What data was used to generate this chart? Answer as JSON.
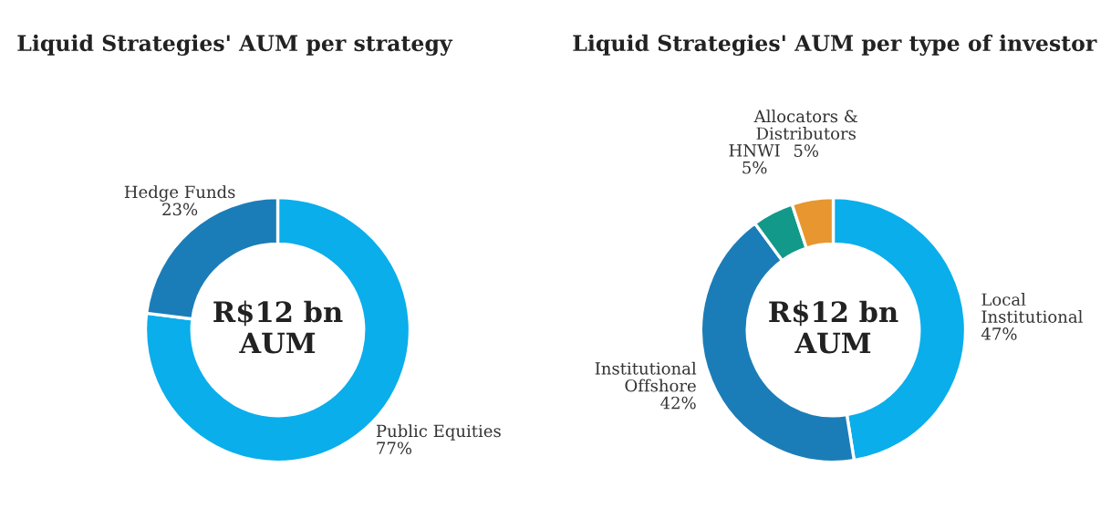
{
  "chart_data": [
    {
      "type": "donut",
      "title": "Liquid Strategies' AUM per strategy",
      "categories": [
        "Public Equities",
        "Hedge Funds"
      ],
      "values": [
        77,
        23
      ],
      "colors": [
        "#0aaeeb",
        "#1b7db8"
      ],
      "value_labels": [
        "77%",
        "23%"
      ],
      "annotations": [
        "R$12 bn\nAUM"
      ]
    },
    {
      "type": "donut",
      "title": "Liquid Strategies' AUM per type of investor",
      "categories": [
        "Local\nInstitutional",
        "Institutional\nOffshore",
        "HNWI",
        "Allocators &\nDistributors"
      ],
      "values": [
        47,
        42,
        5,
        5
      ],
      "colors": [
        "#0aaeeb",
        "#1b7db8",
        "#12998a",
        "#e8962f"
      ],
      "value_labels": [
        "47%",
        "42%",
        "5%",
        "5%"
      ],
      "annotations": [
        "R$12 bn\nAUM"
      ]
    }
  ]
}
